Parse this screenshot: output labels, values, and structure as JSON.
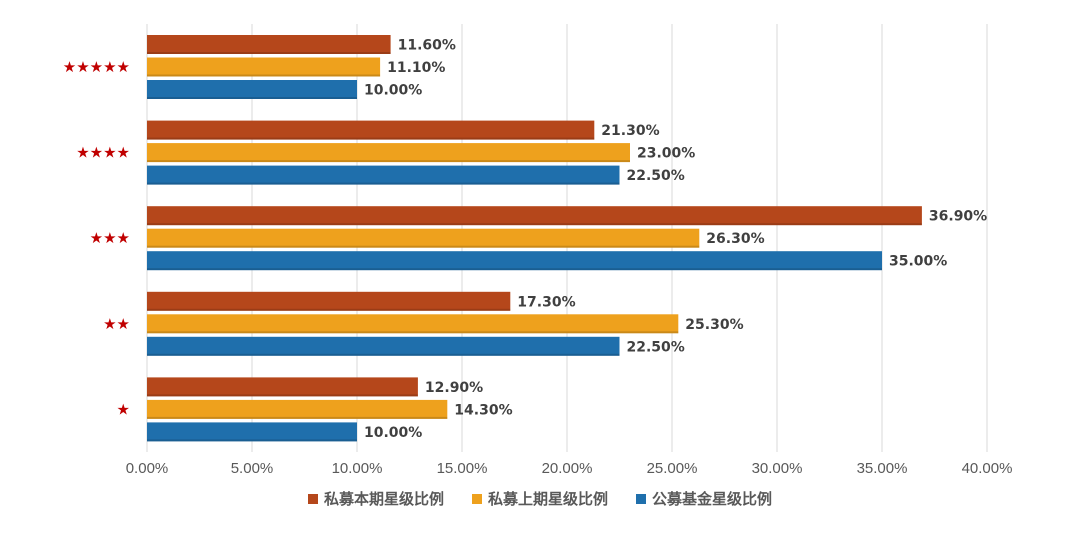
{
  "chart_data": {
    "type": "bar",
    "orientation": "horizontal",
    "categories": [
      "★★★★★",
      "★★★★",
      "★★★",
      "★★",
      "★"
    ],
    "series": [
      {
        "name": "私募本期星级比例",
        "color": "#b5471b",
        "values": [
          11.6,
          21.3,
          36.9,
          17.3,
          12.9
        ]
      },
      {
        "name": "私募上期星级比例",
        "color": "#eea11d",
        "values": [
          11.1,
          23.0,
          26.3,
          25.3,
          14.3
        ]
      },
      {
        "name": "公募基金星级比例",
        "color": "#1f6fac",
        "values": [
          10.0,
          22.5,
          35.0,
          22.5,
          10.0
        ]
      }
    ],
    "data_labels": [
      [
        "11.60%",
        "21.30%",
        "36.90%",
        "17.30%",
        "12.90%"
      ],
      [
        "11.10%",
        "23.00%",
        "26.30%",
        "25.30%",
        "14.30%"
      ],
      [
        "10.00%",
        "22.50%",
        "35.00%",
        "22.50%",
        "10.00%"
      ]
    ],
    "xlim": [
      0,
      40
    ],
    "xticks": [
      0,
      5,
      10,
      15,
      20,
      25,
      30,
      35,
      40
    ],
    "xtick_labels": [
      "0.00%",
      "5.00%",
      "10.00%",
      "15.00%",
      "20.00%",
      "25.00%",
      "30.00%",
      "35.00%",
      "40.00%"
    ],
    "grid": true,
    "legend_position": "bottom",
    "title": "",
    "xlabel": "",
    "ylabel": ""
  }
}
